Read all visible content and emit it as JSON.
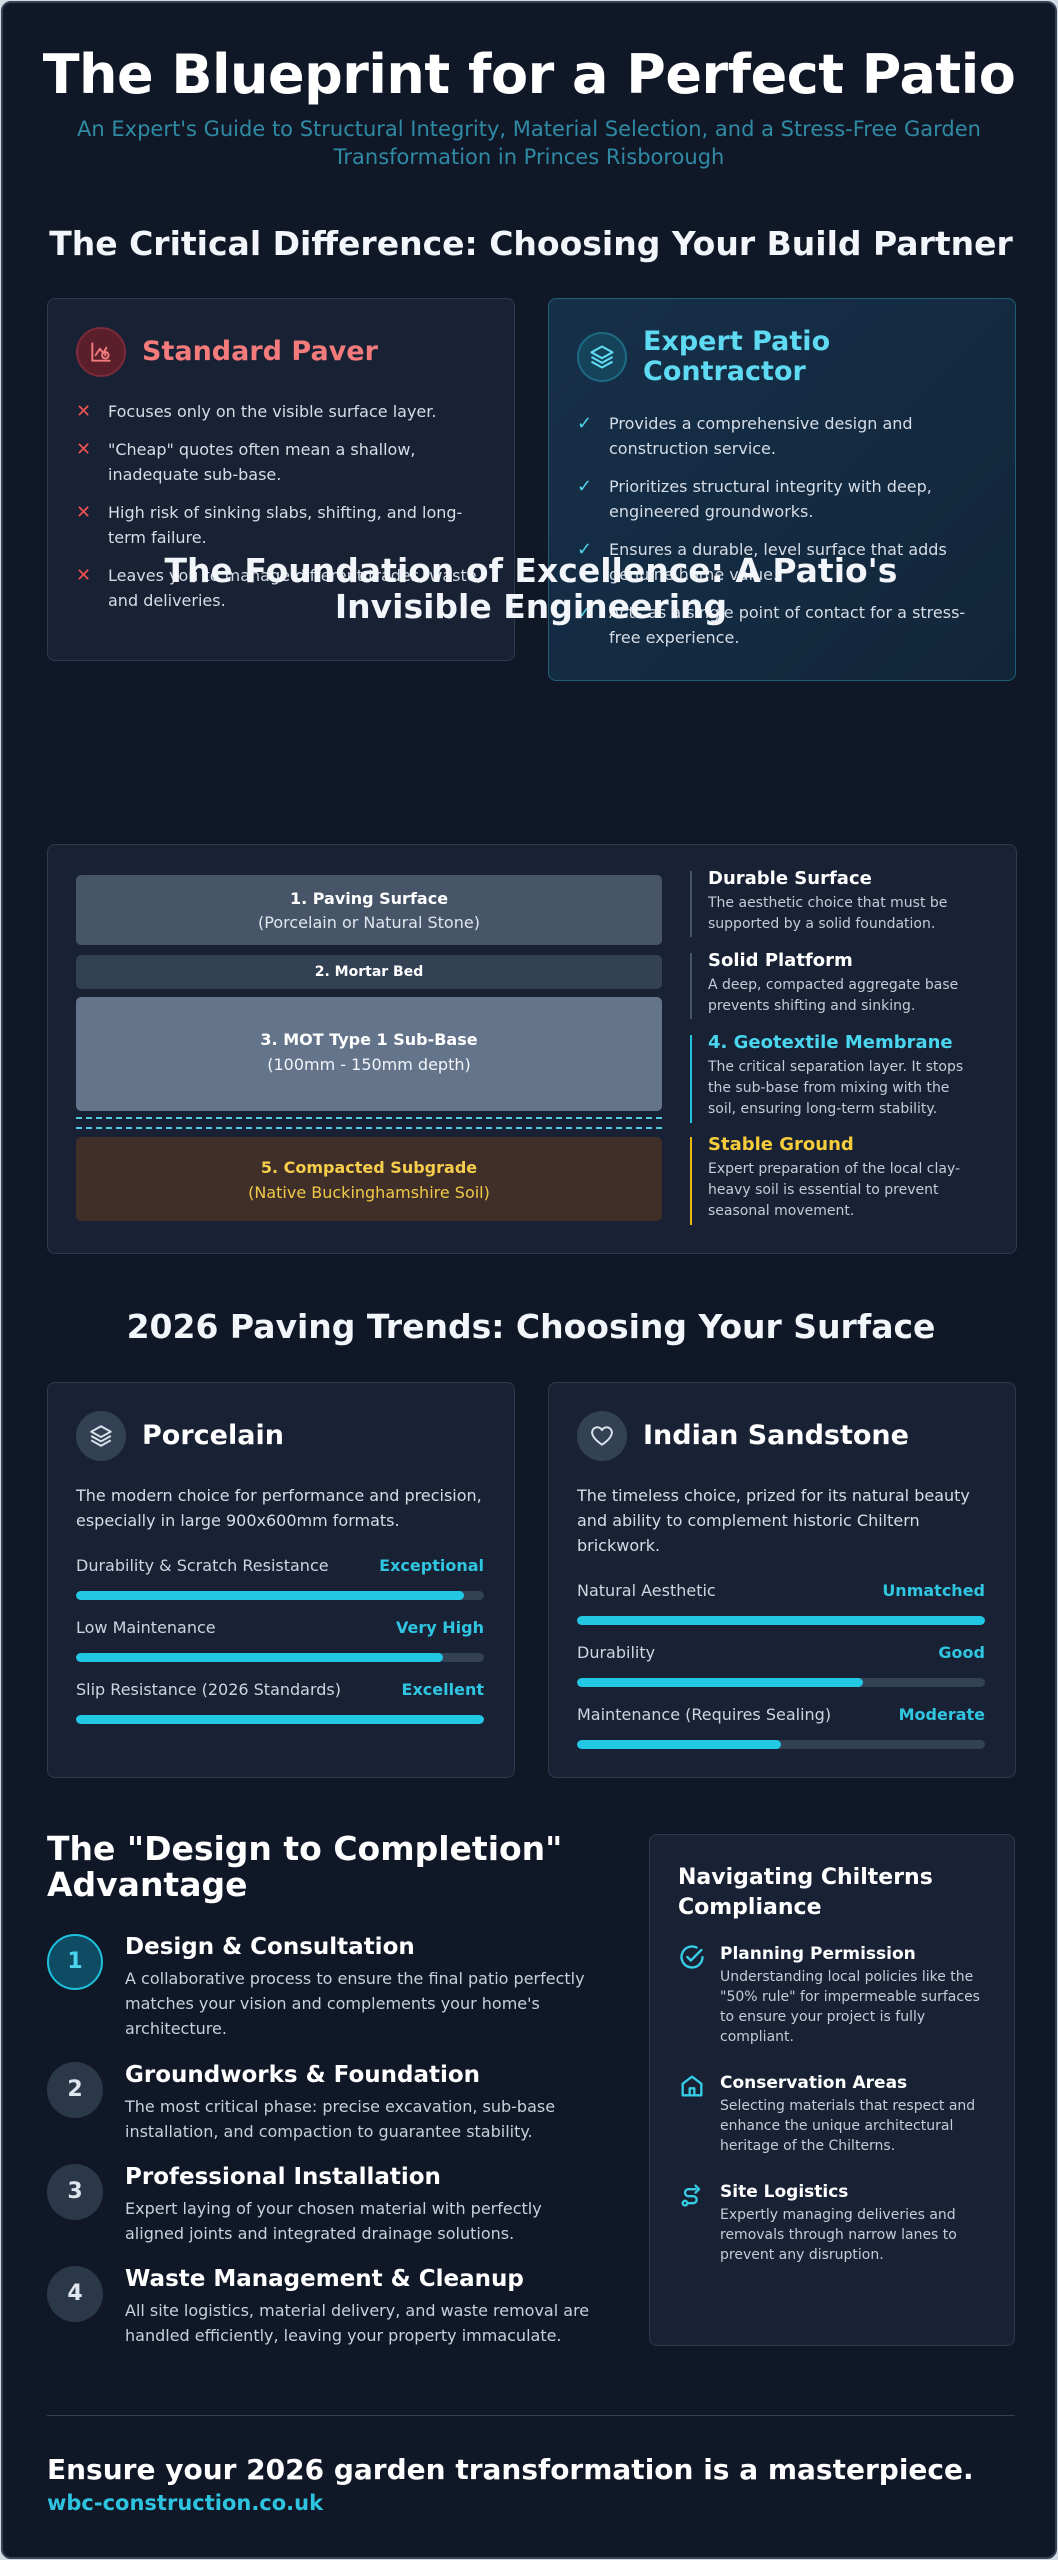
{
  "header": {
    "title": "The Blueprint for a Perfect Patio",
    "subtitle": "An Expert's Guide to Structural Integrity, Material Selection, and a Stress-Free Garden Transformation in Princes Risborough"
  },
  "partner": {
    "title": "The Critical Difference: Choosing Your Build Partner",
    "standard": {
      "title": "Standard Paver",
      "points": [
        "Focuses only on the visible surface layer.",
        "\"Cheap\" quotes often mean a shallow, inadequate sub-base.",
        "High risk of sinking slabs, shifting, and long-term failure.",
        "Leaves you to manage different trades, waste, and deliveries."
      ]
    },
    "expert": {
      "title": "Expert Patio Contractor",
      "points": [
        "Provides a comprehensive design and construction service.",
        "Prioritizes structural integrity with deep, engineered groundworks.",
        "Ensures a durable, level surface that adds genuine home value.",
        "Acts as a single point of contact for a stress-free experience."
      ]
    }
  },
  "foundation": {
    "title": "The Foundation of Excellence: A Patio's Invisible Engineering",
    "layers": {
      "paving": {
        "name": "1. Paving Surface",
        "detail": "(Porcelain or Natural Stone)"
      },
      "mortar": {
        "name": "2. Mortar Bed"
      },
      "subbase": {
        "name": "3. MOT Type 1 Sub-Base",
        "detail": "(100mm - 150mm depth)"
      },
      "subgrade": {
        "name": "5. Compacted Subgrade",
        "detail": "(Native Buckinghamshire Soil)"
      }
    },
    "notes": [
      {
        "title": "Durable Surface",
        "text": "The aesthetic choice that must be supported by a solid foundation."
      },
      {
        "title": "Solid Platform",
        "text": "A deep, compacted aggregate base prevents shifting and sinking."
      },
      {
        "title": "4. Geotextile Membrane",
        "text": "The critical separation layer. It stops the sub-base from mixing with the soil, ensuring long-term stability."
      },
      {
        "title": "Stable Ground",
        "text": "Expert preparation of the local clay-heavy soil is essential to prevent seasonal movement."
      }
    ]
  },
  "trends": {
    "title": "2026 Paving Trends: Choosing Your Surface",
    "porcelain": {
      "title": "Porcelain",
      "description": "The modern choice for performance and precision, especially in large 900x600mm formats.",
      "metrics": [
        {
          "label": "Durability & Scratch Resistance",
          "value": "Exceptional",
          "level": 0.95
        },
        {
          "label": "Low Maintenance",
          "value": "Very High",
          "level": 0.9
        },
        {
          "label": "Slip Resistance (2026 Standards)",
          "value": "Excellent",
          "level": 1.0
        }
      ]
    },
    "sandstone": {
      "title": "Indian Sandstone",
      "description": "The timeless choice, prized for its natural beauty and ability to complement historic Chiltern brickwork.",
      "metrics": [
        {
          "label": "Natural Aesthetic",
          "value": "Unmatched",
          "level": 1.0
        },
        {
          "label": "Durability",
          "value": "Good",
          "level": 0.7
        },
        {
          "label": "Maintenance (Requires Sealing)",
          "value": "Moderate",
          "level": 0.5
        }
      ]
    }
  },
  "process": {
    "title": "The \"Design to Completion\" Advantage",
    "steps": [
      {
        "num": "1",
        "title": "Design & Consultation",
        "text": "A collaborative process to ensure the final patio perfectly matches your vision and complements your home's architecture."
      },
      {
        "num": "2",
        "title": "Groundworks & Foundation",
        "text": "The most critical phase: precise excavation, sub-base installation, and compaction to guarantee stability."
      },
      {
        "num": "3",
        "title": "Professional Installation",
        "text": "Expert laying of your chosen material with perfectly aligned joints and integrated drainage solutions."
      },
      {
        "num": "4",
        "title": "Waste Management & Cleanup",
        "text": "All site logistics, material delivery, and waste removal are handled efficiently, leaving your property immaculate."
      }
    ]
  },
  "compliance": {
    "title": "Navigating Chilterns Compliance",
    "items": [
      {
        "title": "Planning Permission",
        "text": "Understanding local policies like the \"50% rule\" for impermeable surfaces to ensure your project is fully compliant."
      },
      {
        "title": "Conservation Areas",
        "text": "Selecting materials that respect and enhance the unique architectural heritage of the Chilterns."
      },
      {
        "title": "Site Logistics",
        "text": "Expertly managing deliveries and removals through narrow lanes to prevent any disruption."
      }
    ]
  },
  "footer": {
    "cta": "Ensure your 2026 garden transformation is a masterpiece.",
    "link": "wbc-construction.co.uk"
  },
  "icons": {
    "standard": "warning-chart-icon",
    "expert": "layers-icon",
    "porcelain": "layers-icon",
    "sandstone": "heart-icon",
    "planning": "check-badge-icon",
    "conservation": "home-icon",
    "logistics": "route-icon"
  },
  "colors": {
    "background": "#101828",
    "accent": "#22c7e4",
    "warning": "#f05252",
    "highlight": "#f6cc3a"
  }
}
